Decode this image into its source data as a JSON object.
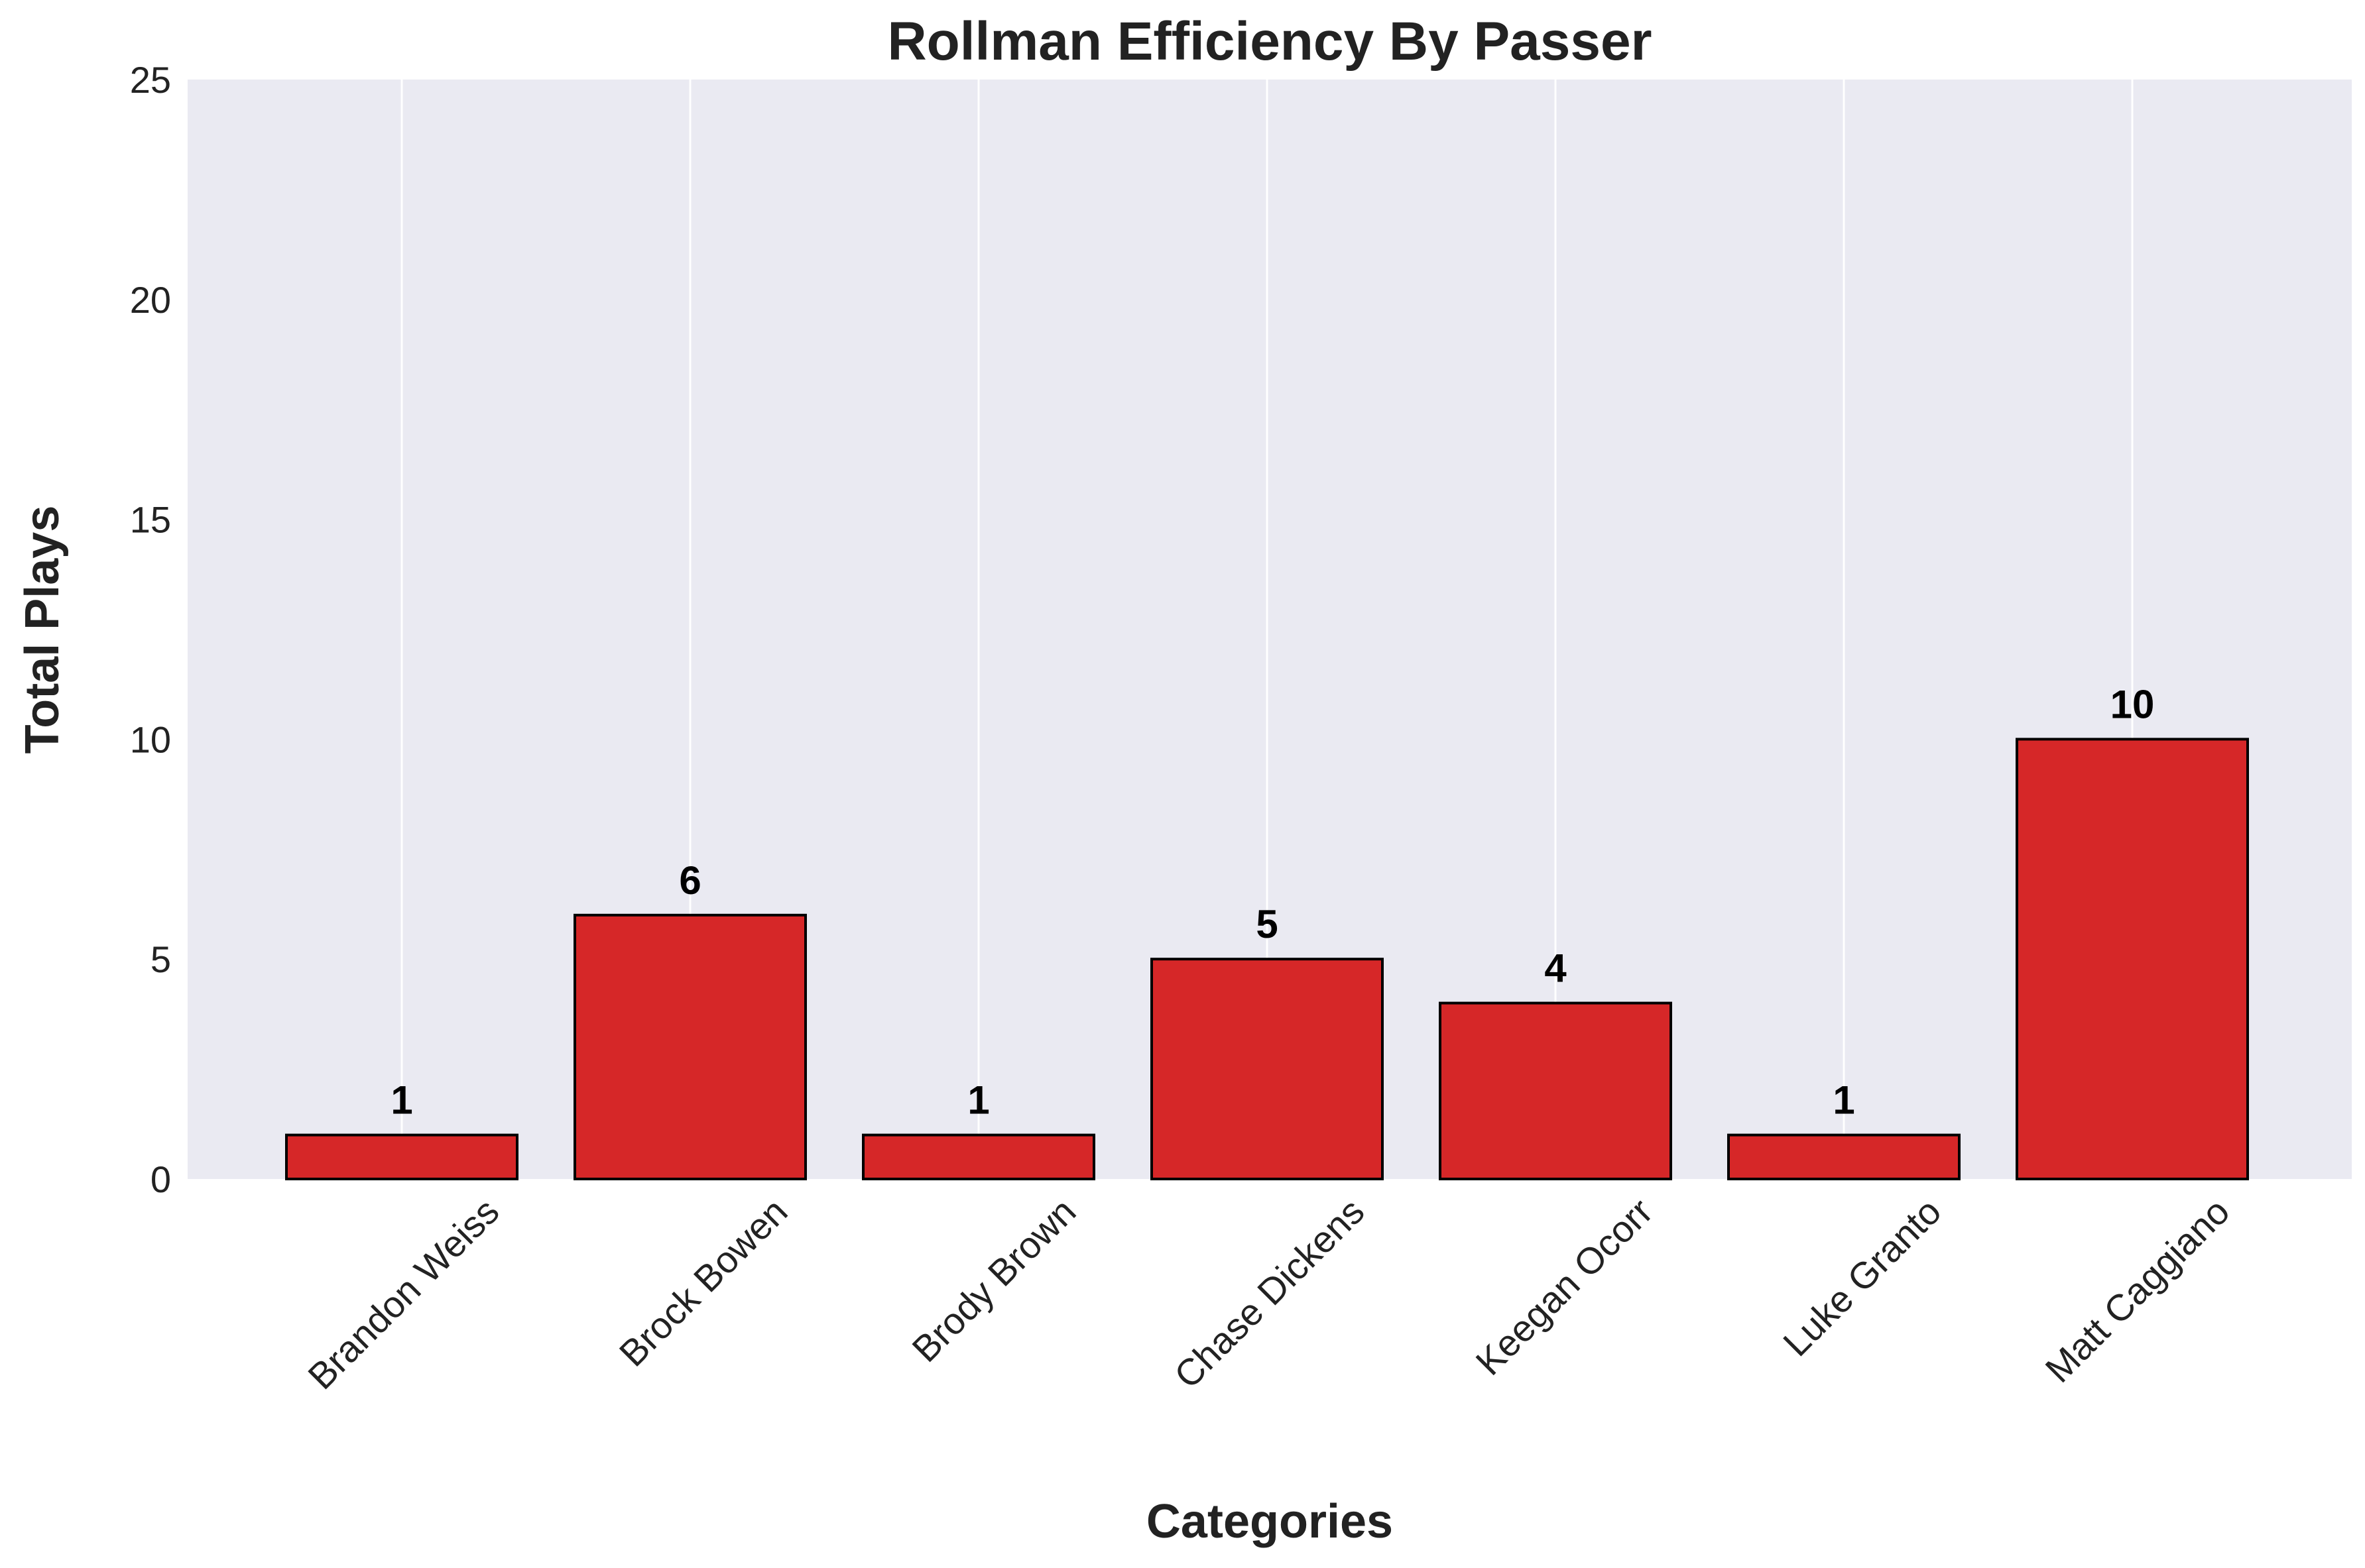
{
  "chart_data": {
    "type": "bar",
    "title": "Rollman Efficiency By Passer",
    "xlabel": "Categories",
    "ylabel": "Total Plays",
    "categories": [
      "Brandon Weiss",
      "Brock Bowen",
      "Brody Brown",
      "Chase Dickens",
      "Keegan Ocorr",
      "Luke Granto",
      "Matt Caggiano"
    ],
    "values": [
      1,
      6,
      1,
      5,
      4,
      1,
      10
    ],
    "ylim": [
      0,
      25
    ],
    "yticks": [
      "0",
      "5",
      "10",
      "15",
      "20",
      "25"
    ],
    "grid": "vertical lines at categories",
    "legend": "none",
    "colors": {
      "bar_fill": "#d62728",
      "bar_edge": "#000000",
      "plot_background": "#eaeaf2",
      "grid": "#ffffff"
    }
  }
}
